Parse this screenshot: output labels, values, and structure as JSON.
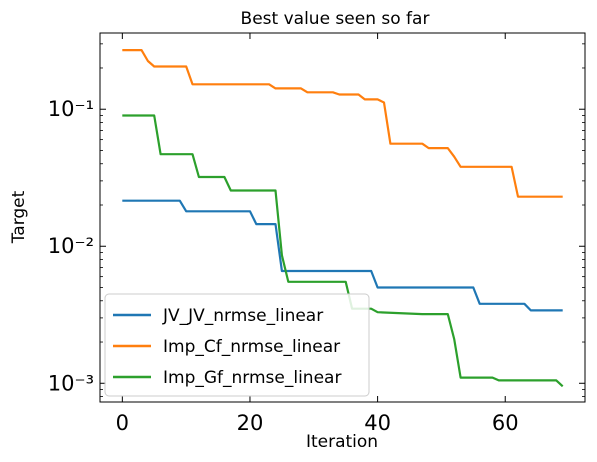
{
  "chart_data": {
    "type": "line",
    "title": "Best value seen so far",
    "xlabel": "Iteration",
    "ylabel": "Target",
    "xlim": [
      -3.5,
      72.5
    ],
    "ylim": [
      0.00073,
      0.36
    ],
    "yscale": "log",
    "xticks": [
      0,
      20,
      40,
      60
    ],
    "xtick_labels": [
      "0",
      "20",
      "40",
      "60"
    ],
    "yticks": [
      0.001,
      0.01,
      0.1
    ],
    "ytick_labels": [
      "10⁻³",
      "10⁻²",
      "10⁻¹"
    ],
    "grid": false,
    "legend_position": "lower-left",
    "series": [
      {
        "name": "JV_JV_nrmse_linear",
        "color": "#1f77b4",
        "x": [
          0,
          9,
          10,
          20,
          21,
          24,
          25,
          39,
          40,
          55,
          56,
          63,
          64,
          69
        ],
        "y": [
          0.0215,
          0.0215,
          0.018,
          0.018,
          0.0145,
          0.0145,
          0.0066,
          0.0066,
          0.005,
          0.005,
          0.0038,
          0.0038,
          0.0034,
          0.0034
        ]
      },
      {
        "name": "Imp_Cf_nrmse_linear",
        "color": "#ff7f0e",
        "x": [
          0,
          3,
          4,
          5,
          10,
          11,
          23,
          24,
          28,
          29,
          33,
          34,
          37,
          38,
          40,
          41,
          42,
          47,
          48,
          51,
          52,
          53,
          61,
          62,
          69
        ],
        "y": [
          0.27,
          0.27,
          0.225,
          0.205,
          0.205,
          0.152,
          0.152,
          0.142,
          0.142,
          0.133,
          0.133,
          0.128,
          0.128,
          0.118,
          0.118,
          0.112,
          0.056,
          0.056,
          0.052,
          0.052,
          0.045,
          0.038,
          0.038,
          0.023,
          0.023
        ]
      },
      {
        "name": "Imp_Gf_nrmse_linear",
        "color": "#2ca02c",
        "x": [
          0,
          5,
          6,
          11,
          12,
          16,
          17,
          24,
          25,
          26,
          35,
          36,
          39,
          40,
          47,
          51,
          52,
          53,
          58,
          59,
          68,
          69
        ],
        "y": [
          0.09,
          0.09,
          0.047,
          0.047,
          0.032,
          0.032,
          0.0255,
          0.0255,
          0.0086,
          0.0055,
          0.0055,
          0.0035,
          0.0035,
          0.0033,
          0.0032,
          0.0032,
          0.0021,
          0.0011,
          0.0011,
          0.00105,
          0.00105,
          0.00095
        ]
      }
    ]
  }
}
